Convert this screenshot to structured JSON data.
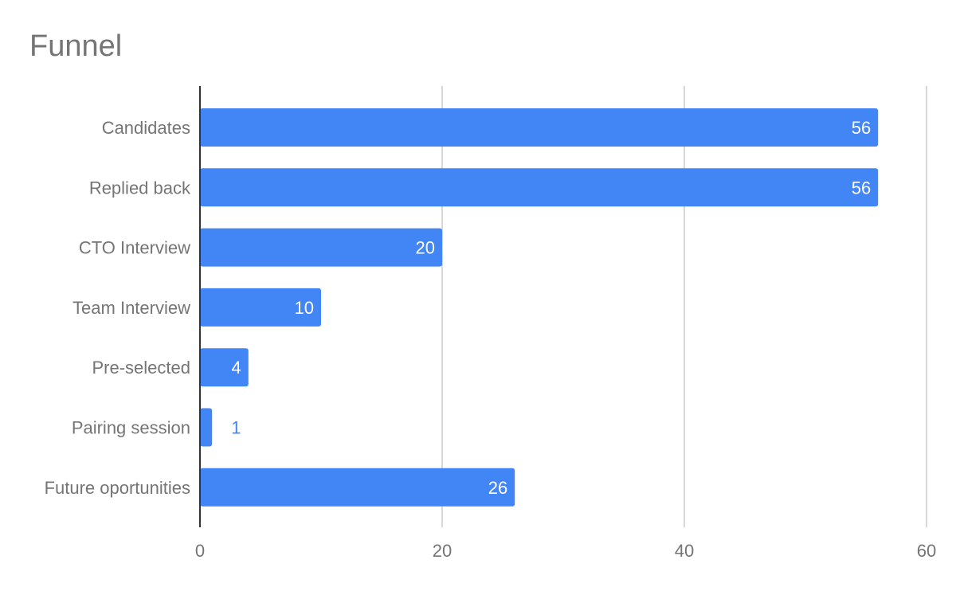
{
  "chart_data": {
    "type": "bar",
    "orientation": "horizontal",
    "title": "Funnel",
    "xlabel": "",
    "ylabel": "",
    "categories": [
      "Candidates",
      "Replied back",
      "CTO Interview",
      "Team Interview",
      "Pre-selected",
      "Pairing session",
      "Future oportunities"
    ],
    "values": [
      56,
      56,
      20,
      10,
      4,
      1,
      26
    ],
    "xlim": [
      0,
      60
    ],
    "x_ticks": [
      "0",
      "20",
      "40",
      "60"
    ],
    "grid": true,
    "legend": "none",
    "colors": {
      "bar": "#4285f4",
      "label_inside": "#ffffff",
      "label_outside": "#4285f4",
      "text": "#757575",
      "grid": "#cccccc",
      "axis": "#333333"
    }
  }
}
